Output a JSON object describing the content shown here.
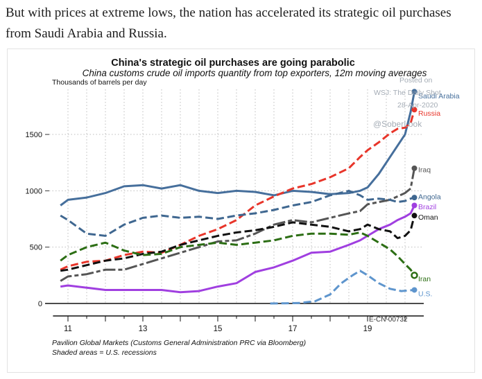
{
  "article": {
    "intro_text": "But with prices at extreme lows, the nation has accelerated its strategic oil purchases from Saudi Arabia and Russia."
  },
  "chart_data": {
    "type": "line",
    "title": "China's strategic oil purchases are going parabolic",
    "subtitle": "China customs crude oil imports quantity from top exporters, 12m moving averages",
    "ylabel": "Thousands of barrels per day",
    "xlabel": "",
    "xlim": [
      2010.5,
      2020.5
    ],
    "ylim": [
      -80,
      1900
    ],
    "x_ticks": [
      11,
      13,
      15,
      17,
      19
    ],
    "x_tick_values": [
      2011,
      2013,
      2015,
      2017,
      2019
    ],
    "y_ticks": [
      0,
      500,
      1000,
      1500
    ],
    "grid": true,
    "legend_placement": "right, at line ends",
    "source": "Pavilion Global Markets (Customs General Administration PRC via Bloomberg)",
    "note": "Shaded areas = U.S. recessions",
    "chart_id": "E-CN-00732",
    "watermark": [
      "Posted on",
      "WSJ: The Daily Shot",
      "28-Apr-2020",
      "@SoberLook"
    ],
    "series": [
      {
        "name": "Saudi Arabia",
        "color": "#466f9c",
        "dash": "solid",
        "x": [
          2010.8,
          2011.0,
          2011.5,
          2012.0,
          2012.5,
          2013.0,
          2013.5,
          2014.0,
          2014.5,
          2015.0,
          2015.5,
          2016.0,
          2016.5,
          2017.0,
          2017.5,
          2018.0,
          2018.5,
          2018.8,
          2019.0,
          2019.3,
          2019.6,
          2019.8,
          2020.0,
          2020.15,
          2020.25
        ],
        "y": [
          870,
          920,
          940,
          980,
          1040,
          1050,
          1020,
          1050,
          1000,
          980,
          1000,
          990,
          960,
          1000,
          990,
          970,
          980,
          1000,
          1030,
          1150,
          1300,
          1400,
          1500,
          1700,
          1880
        ]
      },
      {
        "name": "Russia",
        "color": "#e8352a",
        "dash": "dash",
        "x": [
          2010.8,
          2011.0,
          2011.5,
          2012.0,
          2012.5,
          2013.0,
          2013.5,
          2014.0,
          2014.5,
          2015.0,
          2015.5,
          2016.0,
          2016.5,
          2017.0,
          2017.5,
          2018.0,
          2018.5,
          2018.8,
          2019.0,
          2019.3,
          2019.6,
          2019.8,
          2020.0,
          2020.15,
          2020.25
        ],
        "y": [
          300,
          330,
          370,
          380,
          430,
          460,
          450,
          520,
          600,
          660,
          740,
          870,
          950,
          1020,
          1060,
          1120,
          1200,
          1300,
          1360,
          1430,
          1510,
          1550,
          1560,
          1600,
          1720
        ]
      },
      {
        "name": "Iraq",
        "color": "#555555",
        "dash": "mixed",
        "x": [
          2010.8,
          2011.0,
          2011.5,
          2012.0,
          2012.5,
          2013.0,
          2013.5,
          2014.0,
          2014.5,
          2015.0,
          2015.5,
          2016.0,
          2016.5,
          2017.0,
          2017.5,
          2018.0,
          2018.5,
          2018.8,
          2019.0,
          2019.3,
          2019.6,
          2019.8,
          2020.0,
          2020.15,
          2020.25
        ],
        "y": [
          200,
          240,
          260,
          300,
          300,
          350,
          400,
          450,
          500,
          550,
          560,
          620,
          700,
          740,
          720,
          760,
          800,
          820,
          880,
          900,
          920,
          950,
          980,
          1020,
          1200
        ]
      },
      {
        "name": "Angola",
        "color": "#3f6790",
        "dash": "dash",
        "x": [
          2010.8,
          2011.0,
          2011.5,
          2012.0,
          2012.5,
          2013.0,
          2013.5,
          2014.0,
          2014.5,
          2015.0,
          2015.5,
          2016.0,
          2016.5,
          2017.0,
          2017.5,
          2018.0,
          2018.5,
          2018.8,
          2019.0,
          2019.3,
          2019.6,
          2019.8,
          2020.0,
          2020.15,
          2020.25
        ],
        "y": [
          780,
          740,
          620,
          600,
          700,
          760,
          780,
          760,
          770,
          750,
          780,
          800,
          830,
          870,
          900,
          960,
          1000,
          960,
          920,
          930,
          920,
          900,
          910,
          930,
          940
        ]
      },
      {
        "name": "Brazil",
        "color": "#a03fe0",
        "dash": "solid",
        "x": [
          2010.8,
          2011.0,
          2011.5,
          2012.0,
          2012.5,
          2013.0,
          2013.5,
          2014.0,
          2014.5,
          2015.0,
          2015.5,
          2016.0,
          2016.5,
          2017.0,
          2017.5,
          2018.0,
          2018.5,
          2018.8,
          2019.0,
          2019.3,
          2019.6,
          2019.8,
          2020.0,
          2020.15,
          2020.25
        ],
        "y": [
          150,
          160,
          140,
          120,
          120,
          120,
          120,
          100,
          110,
          150,
          180,
          280,
          320,
          380,
          450,
          460,
          520,
          560,
          600,
          660,
          700,
          740,
          770,
          800,
          870
        ]
      },
      {
        "name": "Oman",
        "color": "#111111",
        "dash": "dash",
        "x": [
          2010.8,
          2011.0,
          2011.5,
          2012.0,
          2012.5,
          2013.0,
          2013.5,
          2014.0,
          2014.5,
          2015.0,
          2015.5,
          2016.0,
          2016.5,
          2017.0,
          2017.5,
          2018.0,
          2018.5,
          2018.8,
          2019.0,
          2019.3,
          2019.6,
          2019.8,
          2020.0,
          2020.15,
          2020.25
        ],
        "y": [
          290,
          300,
          340,
          380,
          400,
          440,
          460,
          520,
          560,
          600,
          630,
          650,
          680,
          720,
          700,
          680,
          640,
          660,
          700,
          660,
          640,
          580,
          600,
          650,
          780
        ]
      },
      {
        "name": "Iran",
        "color": "#2c6e14",
        "dash": "dash",
        "x": [
          2010.8,
          2011.0,
          2011.5,
          2012.0,
          2012.5,
          2013.0,
          2013.5,
          2014.0,
          2014.5,
          2015.0,
          2015.5,
          2016.0,
          2016.5,
          2017.0,
          2017.5,
          2018.0,
          2018.5,
          2018.8,
          2019.0,
          2019.3,
          2019.6,
          2019.8,
          2020.0,
          2020.15,
          2020.25
        ],
        "y": [
          380,
          430,
          500,
          540,
          470,
          430,
          440,
          500,
          520,
          540,
          520,
          540,
          560,
          600,
          620,
          620,
          610,
          630,
          600,
          540,
          480,
          420,
          350,
          300,
          250
        ]
      },
      {
        "name": "U.S.",
        "color": "#5e95cd",
        "dash": "dash",
        "x": [
          2016.4,
          2016.8,
          2017.2,
          2017.6,
          2018.0,
          2018.3,
          2018.6,
          2018.8,
          2019.0,
          2019.3,
          2019.6,
          2019.9,
          2020.25
        ],
        "y": [
          0,
          2,
          5,
          20,
          80,
          180,
          250,
          290,
          250,
          180,
          130,
          110,
          120
        ]
      }
    ]
  }
}
